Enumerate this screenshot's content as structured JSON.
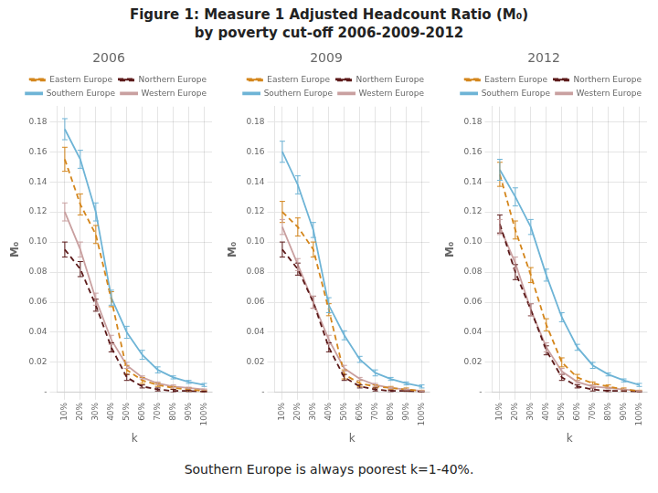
{
  "title": "Figure 1: Measure 1 Adjusted Headcount Ratio (M₀)\nby poverty cut-off 2006-2009-2012",
  "subtitle": "Southern Europe is always poorest k=1-40%.",
  "chart_data": [
    {
      "type": "line",
      "title": "2006",
      "x_label": "k",
      "y_label": "M₀",
      "x": [
        10,
        20,
        30,
        40,
        50,
        60,
        70,
        80,
        90,
        100
      ],
      "xlim": [
        5,
        105
      ],
      "xticks": [
        {
          "value": 10,
          "label": "10%"
        },
        {
          "value": 20,
          "label": "20%"
        },
        {
          "value": 30,
          "label": "30%"
        },
        {
          "value": 40,
          "label": "40%"
        },
        {
          "value": 50,
          "label": "50%"
        },
        {
          "value": 60,
          "label": "60%"
        },
        {
          "value": 70,
          "label": "70%"
        },
        {
          "value": 80,
          "label": "80%"
        },
        {
          "value": 90,
          "label": "90%"
        },
        {
          "value": 100,
          "label": "100%"
        }
      ],
      "ylim": [
        0,
        0.19
      ],
      "yticks": [
        {
          "value": 0.0,
          "label": "-"
        },
        0.02,
        0.04,
        0.06,
        0.08,
        {
          "value": 0.1,
          "label": "0.10"
        },
        0.12,
        0.14,
        0.16,
        0.18
      ],
      "grid": true,
      "legend": "upper right",
      "series": [
        {
          "name": "Eastern\nEurope",
          "color": "#D4861C",
          "line_style": "dashed",
          "values": [
            0.155,
            0.125,
            0.105,
            0.062,
            0.015,
            0.008,
            0.005,
            0.003,
            0.002,
            0.001
          ],
          "errors": [
            0.008,
            0.007,
            0.006,
            0.005,
            0.003,
            0.002,
            0.001,
            0.001,
            0.001,
            0.0005
          ]
        },
        {
          "name": "Northern\nEurope",
          "color": "#5C1A1A",
          "line_style": "dashed",
          "values": [
            0.095,
            0.082,
            0.058,
            0.03,
            0.01,
            0.004,
            0.002,
            0.001,
            0.001,
            0.0005
          ],
          "errors": [
            0.005,
            0.005,
            0.004,
            0.003,
            0.002,
            0.001,
            0.001,
            0.001,
            0.0005,
            0.0003
          ]
        },
        {
          "name": "Southern\nEurope",
          "color": "#6EB4D6",
          "line_style": "solid",
          "values": [
            0.175,
            0.155,
            0.12,
            0.063,
            0.04,
            0.025,
            0.015,
            0.01,
            0.007,
            0.005
          ],
          "errors": [
            0.007,
            0.006,
            0.006,
            0.005,
            0.004,
            0.003,
            0.002,
            0.001,
            0.001,
            0.001
          ]
        },
        {
          "name": "Western\nEurope",
          "color": "#C9A0A0",
          "line_style": "solid",
          "values": [
            0.12,
            0.095,
            0.062,
            0.035,
            0.018,
            0.01,
            0.006,
            0.004,
            0.003,
            0.002
          ],
          "errors": [
            0.006,
            0.005,
            0.004,
            0.003,
            0.002,
            0.001,
            0.001,
            0.001,
            0.0005,
            0.0003
          ]
        }
      ]
    },
    {
      "type": "line",
      "title": "2009",
      "x_label": "k",
      "y_label": "M₀",
      "x": [
        10,
        20,
        30,
        40,
        50,
        60,
        70,
        80,
        90,
        100
      ],
      "xlim": [
        5,
        105
      ],
      "xticks": [
        {
          "value": 10,
          "label": "10%"
        },
        {
          "value": 20,
          "label": "20%"
        },
        {
          "value": 30,
          "label": "30%"
        },
        {
          "value": 40,
          "label": "40%"
        },
        {
          "value": 50,
          "label": "50%"
        },
        {
          "value": 60,
          "label": "60%"
        },
        {
          "value": 70,
          "label": "70%"
        },
        {
          "value": 80,
          "label": "80%"
        },
        {
          "value": 90,
          "label": "90%"
        },
        {
          "value": 100,
          "label": "100%"
        }
      ],
      "ylim": [
        0,
        0.19
      ],
      "yticks": [
        {
          "value": 0.0,
          "label": "-"
        },
        0.02,
        0.04,
        0.06,
        0.08,
        {
          "value": 0.1,
          "label": "0.10"
        },
        0.12,
        0.14,
        0.16,
        0.18
      ],
      "grid": true,
      "legend": "upper right",
      "series": [
        {
          "name": "Eastern\nEurope",
          "color": "#D4861C",
          "line_style": "dashed",
          "values": [
            0.12,
            0.11,
            0.095,
            0.055,
            0.012,
            0.006,
            0.004,
            0.003,
            0.002,
            0.001
          ],
          "errors": [
            0.007,
            0.006,
            0.005,
            0.004,
            0.003,
            0.002,
            0.001,
            0.001,
            0.001,
            0.0005
          ]
        },
        {
          "name": "Northern\nEurope",
          "color": "#5C1A1A",
          "line_style": "dashed",
          "values": [
            0.095,
            0.082,
            0.06,
            0.03,
            0.01,
            0.004,
            0.002,
            0.001,
            0.001,
            0.0005
          ],
          "errors": [
            0.005,
            0.004,
            0.004,
            0.003,
            0.002,
            0.001,
            0.001,
            0.0005,
            0.0003,
            0.0002
          ]
        },
        {
          "name": "Southern\nEurope",
          "color": "#6EB4D6",
          "line_style": "solid",
          "values": [
            0.16,
            0.138,
            0.108,
            0.058,
            0.038,
            0.022,
            0.013,
            0.009,
            0.006,
            0.004
          ],
          "errors": [
            0.007,
            0.006,
            0.005,
            0.005,
            0.003,
            0.002,
            0.002,
            0.001,
            0.001,
            0.001
          ]
        },
        {
          "name": "Western\nEurope",
          "color": "#C9A0A0",
          "line_style": "solid",
          "values": [
            0.11,
            0.085,
            0.06,
            0.035,
            0.016,
            0.009,
            0.005,
            0.003,
            0.002,
            0.001
          ],
          "errors": [
            0.005,
            0.004,
            0.004,
            0.003,
            0.002,
            0.001,
            0.001,
            0.0005,
            0.0003,
            0.0002
          ]
        }
      ]
    },
    {
      "type": "line",
      "title": "2012",
      "x_label": "k",
      "y_label": "M₀",
      "x": [
        10,
        20,
        30,
        40,
        50,
        60,
        70,
        80,
        90,
        100
      ],
      "xlim": [
        5,
        105
      ],
      "xticks": [
        {
          "value": 10,
          "label": "10%"
        },
        {
          "value": 20,
          "label": "20%"
        },
        {
          "value": 30,
          "label": "30%"
        },
        {
          "value": 40,
          "label": "40%"
        },
        {
          "value": 50,
          "label": "50%"
        },
        {
          "value": 60,
          "label": "60%"
        },
        {
          "value": 70,
          "label": "70%"
        },
        {
          "value": 80,
          "label": "80%"
        },
        {
          "value": 90,
          "label": "90%"
        },
        {
          "value": 100,
          "label": "100%"
        }
      ],
      "ylim": [
        0,
        0.19
      ],
      "yticks": [
        {
          "value": 0.0,
          "label": "-"
        },
        0.02,
        0.04,
        0.06,
        0.08,
        {
          "value": 0.1,
          "label": "0.10"
        },
        0.12,
        0.14,
        0.16,
        0.18
      ],
      "grid": true,
      "legend": "upper right",
      "series": [
        {
          "name": "Eastern\nEurope",
          "color": "#D4861C",
          "line_style": "dashed",
          "values": [
            0.145,
            0.108,
            0.078,
            0.045,
            0.02,
            0.01,
            0.006,
            0.004,
            0.002,
            0.001
          ],
          "errors": [
            0.008,
            0.006,
            0.005,
            0.004,
            0.003,
            0.002,
            0.001,
            0.001,
            0.001,
            0.0005
          ]
        },
        {
          "name": "Northern\nEurope",
          "color": "#5C1A1A",
          "line_style": "dashed",
          "values": [
            0.112,
            0.08,
            0.055,
            0.028,
            0.01,
            0.004,
            0.002,
            0.001,
            0.001,
            0.0005
          ],
          "errors": [
            0.006,
            0.005,
            0.004,
            0.003,
            0.002,
            0.001,
            0.001,
            0.0005,
            0.0003,
            0.0002
          ]
        },
        {
          "name": "Southern\nEurope",
          "color": "#6EB4D6",
          "line_style": "solid",
          "values": [
            0.148,
            0.13,
            0.11,
            0.078,
            0.05,
            0.03,
            0.018,
            0.012,
            0.008,
            0.005
          ],
          "errors": [
            0.007,
            0.006,
            0.005,
            0.004,
            0.003,
            0.002,
            0.002,
            0.001,
            0.001,
            0.001
          ]
        },
        {
          "name": "Western\nEurope",
          "color": "#C9A0A0",
          "line_style": "solid",
          "values": [
            0.11,
            0.086,
            0.055,
            0.03,
            0.014,
            0.007,
            0.004,
            0.003,
            0.002,
            0.001
          ],
          "errors": [
            0.005,
            0.004,
            0.004,
            0.003,
            0.002,
            0.001,
            0.001,
            0.0005,
            0.0003,
            0.0002
          ]
        }
      ]
    }
  ]
}
